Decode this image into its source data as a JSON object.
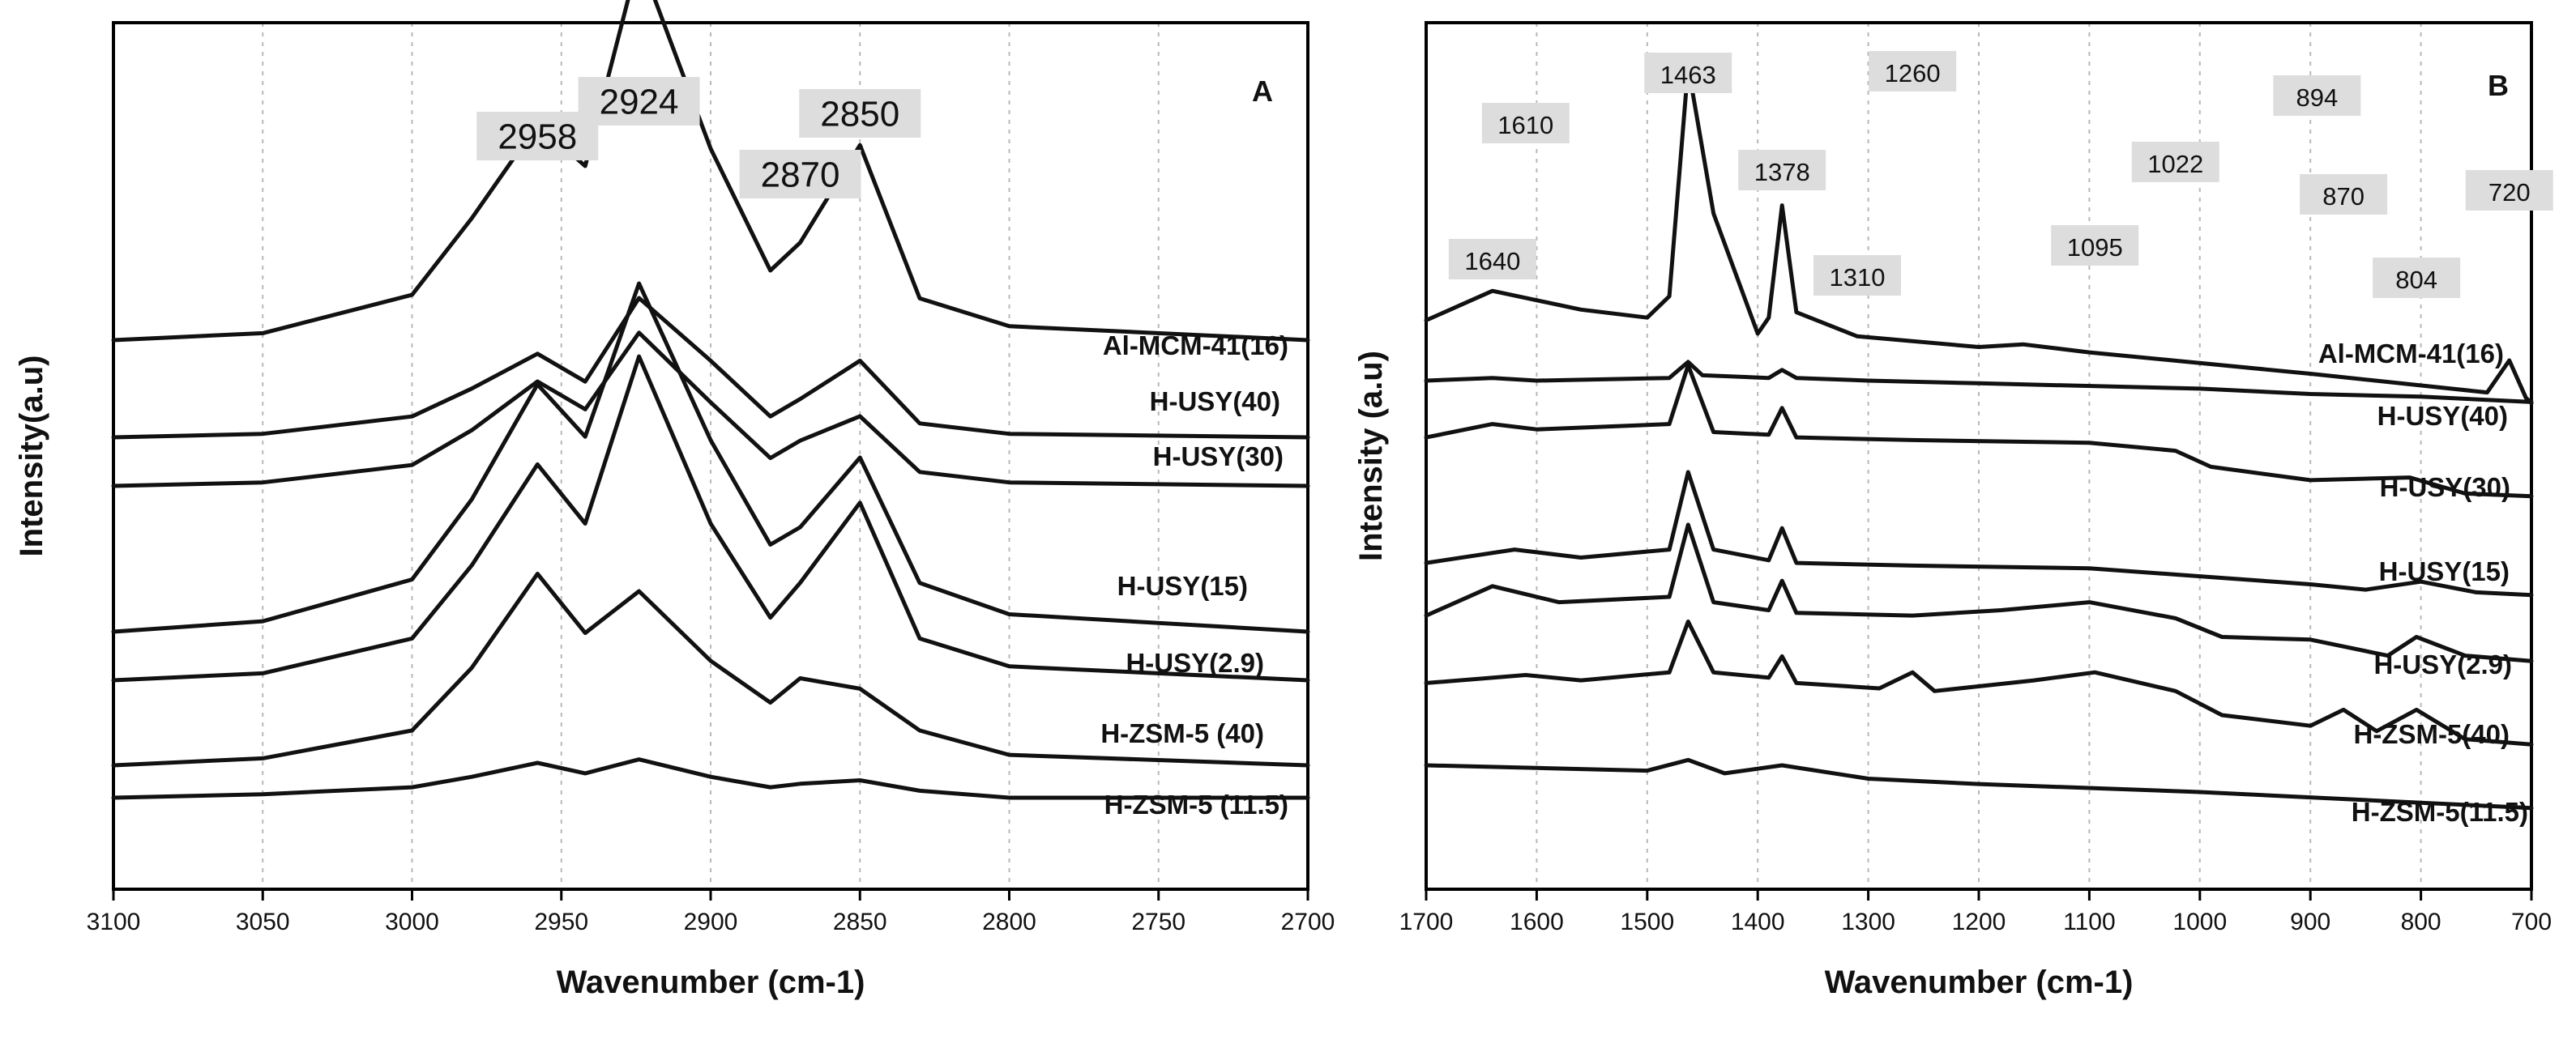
{
  "chart_data": [
    {
      "panel": "A",
      "type": "line",
      "xlabel": "Wavenumber (cm-1)",
      "ylabel": "Intensity(a.u)",
      "xlim": [
        3100,
        2700
      ],
      "x_reversed": true,
      "x_ticks": [
        "3100",
        "3050",
        "3000",
        "2950",
        "2900",
        "2850",
        "2800",
        "2750",
        "2700"
      ],
      "y_ticks_shown": false,
      "grid": "vertical dotted",
      "peak_annotations": [
        "2958",
        "2924",
        "2870",
        "2850"
      ],
      "series": [
        {
          "name": "Al-MCM-41(16)",
          "x": [
            3100,
            3050,
            3000,
            2980,
            2958,
            2942,
            2924,
            2900,
            2880,
            2870,
            2850,
            2830,
            2800,
            2700
          ],
          "y": [
            0.0,
            0.02,
            0.13,
            0.35,
            0.62,
            0.5,
            1.1,
            0.55,
            0.2,
            0.28,
            0.56,
            0.12,
            0.04,
            0.0
          ]
        },
        {
          "name": "H-USY(40)",
          "x": [
            3100,
            3050,
            3000,
            2980,
            2958,
            2942,
            2924,
            2900,
            2880,
            2870,
            2850,
            2830,
            2800,
            2700
          ],
          "y": [
            0.0,
            0.01,
            0.06,
            0.14,
            0.24,
            0.16,
            0.4,
            0.22,
            0.06,
            0.11,
            0.22,
            0.04,
            0.01,
            0.0
          ]
        },
        {
          "name": "H-USY(30)",
          "x": [
            3100,
            3050,
            3000,
            2980,
            2958,
            2942,
            2924,
            2900,
            2880,
            2870,
            2850,
            2830,
            2800,
            2700
          ],
          "y": [
            0.0,
            0.01,
            0.06,
            0.16,
            0.3,
            0.22,
            0.44,
            0.24,
            0.08,
            0.13,
            0.2,
            0.04,
            0.01,
            0.0
          ]
        },
        {
          "name": "H-USY(15)",
          "x": [
            3100,
            3050,
            3000,
            2980,
            2958,
            2942,
            2924,
            2900,
            2880,
            2870,
            2850,
            2830,
            2800,
            2700
          ],
          "y": [
            0.0,
            0.03,
            0.15,
            0.38,
            0.71,
            0.56,
            1.0,
            0.55,
            0.25,
            0.3,
            0.5,
            0.14,
            0.05,
            0.0
          ]
        },
        {
          "name": "H-USY(2.9)",
          "x": [
            3100,
            3050,
            3000,
            2980,
            2958,
            2942,
            2924,
            2900,
            2880,
            2870,
            2850,
            2830,
            2800,
            2700
          ],
          "y": [
            0.0,
            0.02,
            0.12,
            0.33,
            0.62,
            0.45,
            0.93,
            0.45,
            0.18,
            0.28,
            0.51,
            0.12,
            0.04,
            0.0
          ]
        },
        {
          "name": "H-ZSM-5 (40)",
          "x": [
            3100,
            3050,
            3000,
            2980,
            2958,
            2942,
            2924,
            2900,
            2880,
            2870,
            2850,
            2830,
            2800,
            2700
          ],
          "y": [
            0.0,
            0.02,
            0.1,
            0.28,
            0.55,
            0.38,
            0.5,
            0.3,
            0.18,
            0.25,
            0.22,
            0.1,
            0.03,
            0.0
          ]
        },
        {
          "name": "H-ZSM-5 (11.5)",
          "x": [
            3100,
            3050,
            3000,
            2980,
            2958,
            2942,
            2924,
            2900,
            2880,
            2870,
            2850,
            2830,
            2800,
            2700
          ],
          "y": [
            0.0,
            0.01,
            0.03,
            0.06,
            0.1,
            0.07,
            0.11,
            0.06,
            0.03,
            0.04,
            0.05,
            0.02,
            0.0,
            0.0
          ]
        }
      ]
    },
    {
      "panel": "B",
      "type": "line",
      "xlabel": "Wavenumber (cm-1)",
      "ylabel": "Intensity (a.u)",
      "xlim": [
        1700,
        700
      ],
      "x_reversed": true,
      "x_ticks": [
        "1700",
        "1600",
        "1500",
        "1400",
        "1300",
        "1200",
        "1100",
        "1000",
        "900",
        "800",
        "700"
      ],
      "y_ticks_shown": false,
      "grid": "vertical dotted",
      "peak_annotations": [
        "1640",
        "1610",
        "1463",
        "1378",
        "1310",
        "1260",
        "1095",
        "1022",
        "894",
        "870",
        "804",
        "720"
      ],
      "series": [
        {
          "name": "Al-MCM-41(16)",
          "x": [
            1700,
            1640,
            1560,
            1500,
            1480,
            1463,
            1440,
            1400,
            1390,
            1378,
            1365,
            1310,
            1200,
            1160,
            1100,
            900,
            740,
            720,
            705,
            700
          ],
          "y": [
            0.15,
            0.26,
            0.19,
            0.16,
            0.24,
            1.1,
            0.55,
            0.1,
            0.16,
            0.58,
            0.18,
            0.09,
            0.05,
            0.06,
            0.03,
            -0.05,
            -0.12,
            0.0,
            -0.14,
            -0.16
          ]
        },
        {
          "name": "H-USY(40)",
          "x": [
            1700,
            1640,
            1600,
            1480,
            1463,
            1450,
            1390,
            1378,
            1365,
            1300,
            1200,
            1000,
            900,
            800,
            700
          ],
          "y": [
            0.0,
            0.01,
            0.0,
            0.01,
            0.07,
            0.02,
            0.01,
            0.04,
            0.01,
            0.0,
            -0.01,
            -0.03,
            -0.05,
            -0.06,
            -0.08
          ]
        },
        {
          "name": "H-USY(30)",
          "x": [
            1700,
            1640,
            1600,
            1480,
            1463,
            1440,
            1390,
            1378,
            1365,
            1260,
            1100,
            1022,
            990,
            900,
            810,
            760,
            700
          ],
          "y": [
            0.03,
            0.08,
            0.06,
            0.08,
            0.3,
            0.05,
            0.04,
            0.14,
            0.03,
            0.02,
            0.01,
            -0.02,
            -0.08,
            -0.13,
            -0.12,
            -0.18,
            -0.19
          ]
        },
        {
          "name": "H-USY(15)",
          "x": [
            1700,
            1620,
            1560,
            1480,
            1463,
            1440,
            1390,
            1378,
            1365,
            1260,
            1100,
            1000,
            900,
            850,
            800,
            750,
            700
          ],
          "y": [
            0.03,
            0.08,
            0.05,
            0.08,
            0.37,
            0.08,
            0.04,
            0.16,
            0.03,
            0.02,
            0.01,
            -0.02,
            -0.05,
            -0.07,
            -0.04,
            -0.08,
            -0.09
          ]
        },
        {
          "name": "H-USY(2.9)",
          "x": [
            1700,
            1640,
            1580,
            1480,
            1463,
            1440,
            1390,
            1378,
            1365,
            1260,
            1180,
            1100,
            1022,
            980,
            900,
            830,
            804,
            760,
            700
          ],
          "y": [
            0.03,
            0.14,
            0.08,
            0.1,
            0.37,
            0.08,
            0.05,
            0.16,
            0.04,
            0.03,
            0.05,
            0.08,
            0.02,
            -0.05,
            -0.06,
            -0.12,
            -0.05,
            -0.12,
            -0.14
          ]
        },
        {
          "name": "H-ZSM-5(40)",
          "x": [
            1700,
            1610,
            1560,
            1480,
            1463,
            1440,
            1390,
            1378,
            1365,
            1290,
            1260,
            1240,
            1150,
            1095,
            1022,
            980,
            900,
            870,
            840,
            804,
            760,
            700
          ],
          "y": [
            0.02,
            0.05,
            0.03,
            0.06,
            0.25,
            0.06,
            0.04,
            0.12,
            0.02,
            0.0,
            0.06,
            -0.01,
            0.03,
            0.06,
            -0.01,
            -0.1,
            -0.14,
            -0.08,
            -0.16,
            -0.08,
            -0.19,
            -0.21
          ]
        },
        {
          "name": "H-ZSM-5(11.5)",
          "x": [
            1700,
            1600,
            1500,
            1463,
            1430,
            1378,
            1300,
            1200,
            1000,
            900,
            800,
            700
          ],
          "y": [
            0.0,
            -0.01,
            -0.02,
            0.02,
            -0.03,
            0.0,
            -0.05,
            -0.07,
            -0.1,
            -0.12,
            -0.14,
            -0.16
          ]
        }
      ]
    }
  ]
}
